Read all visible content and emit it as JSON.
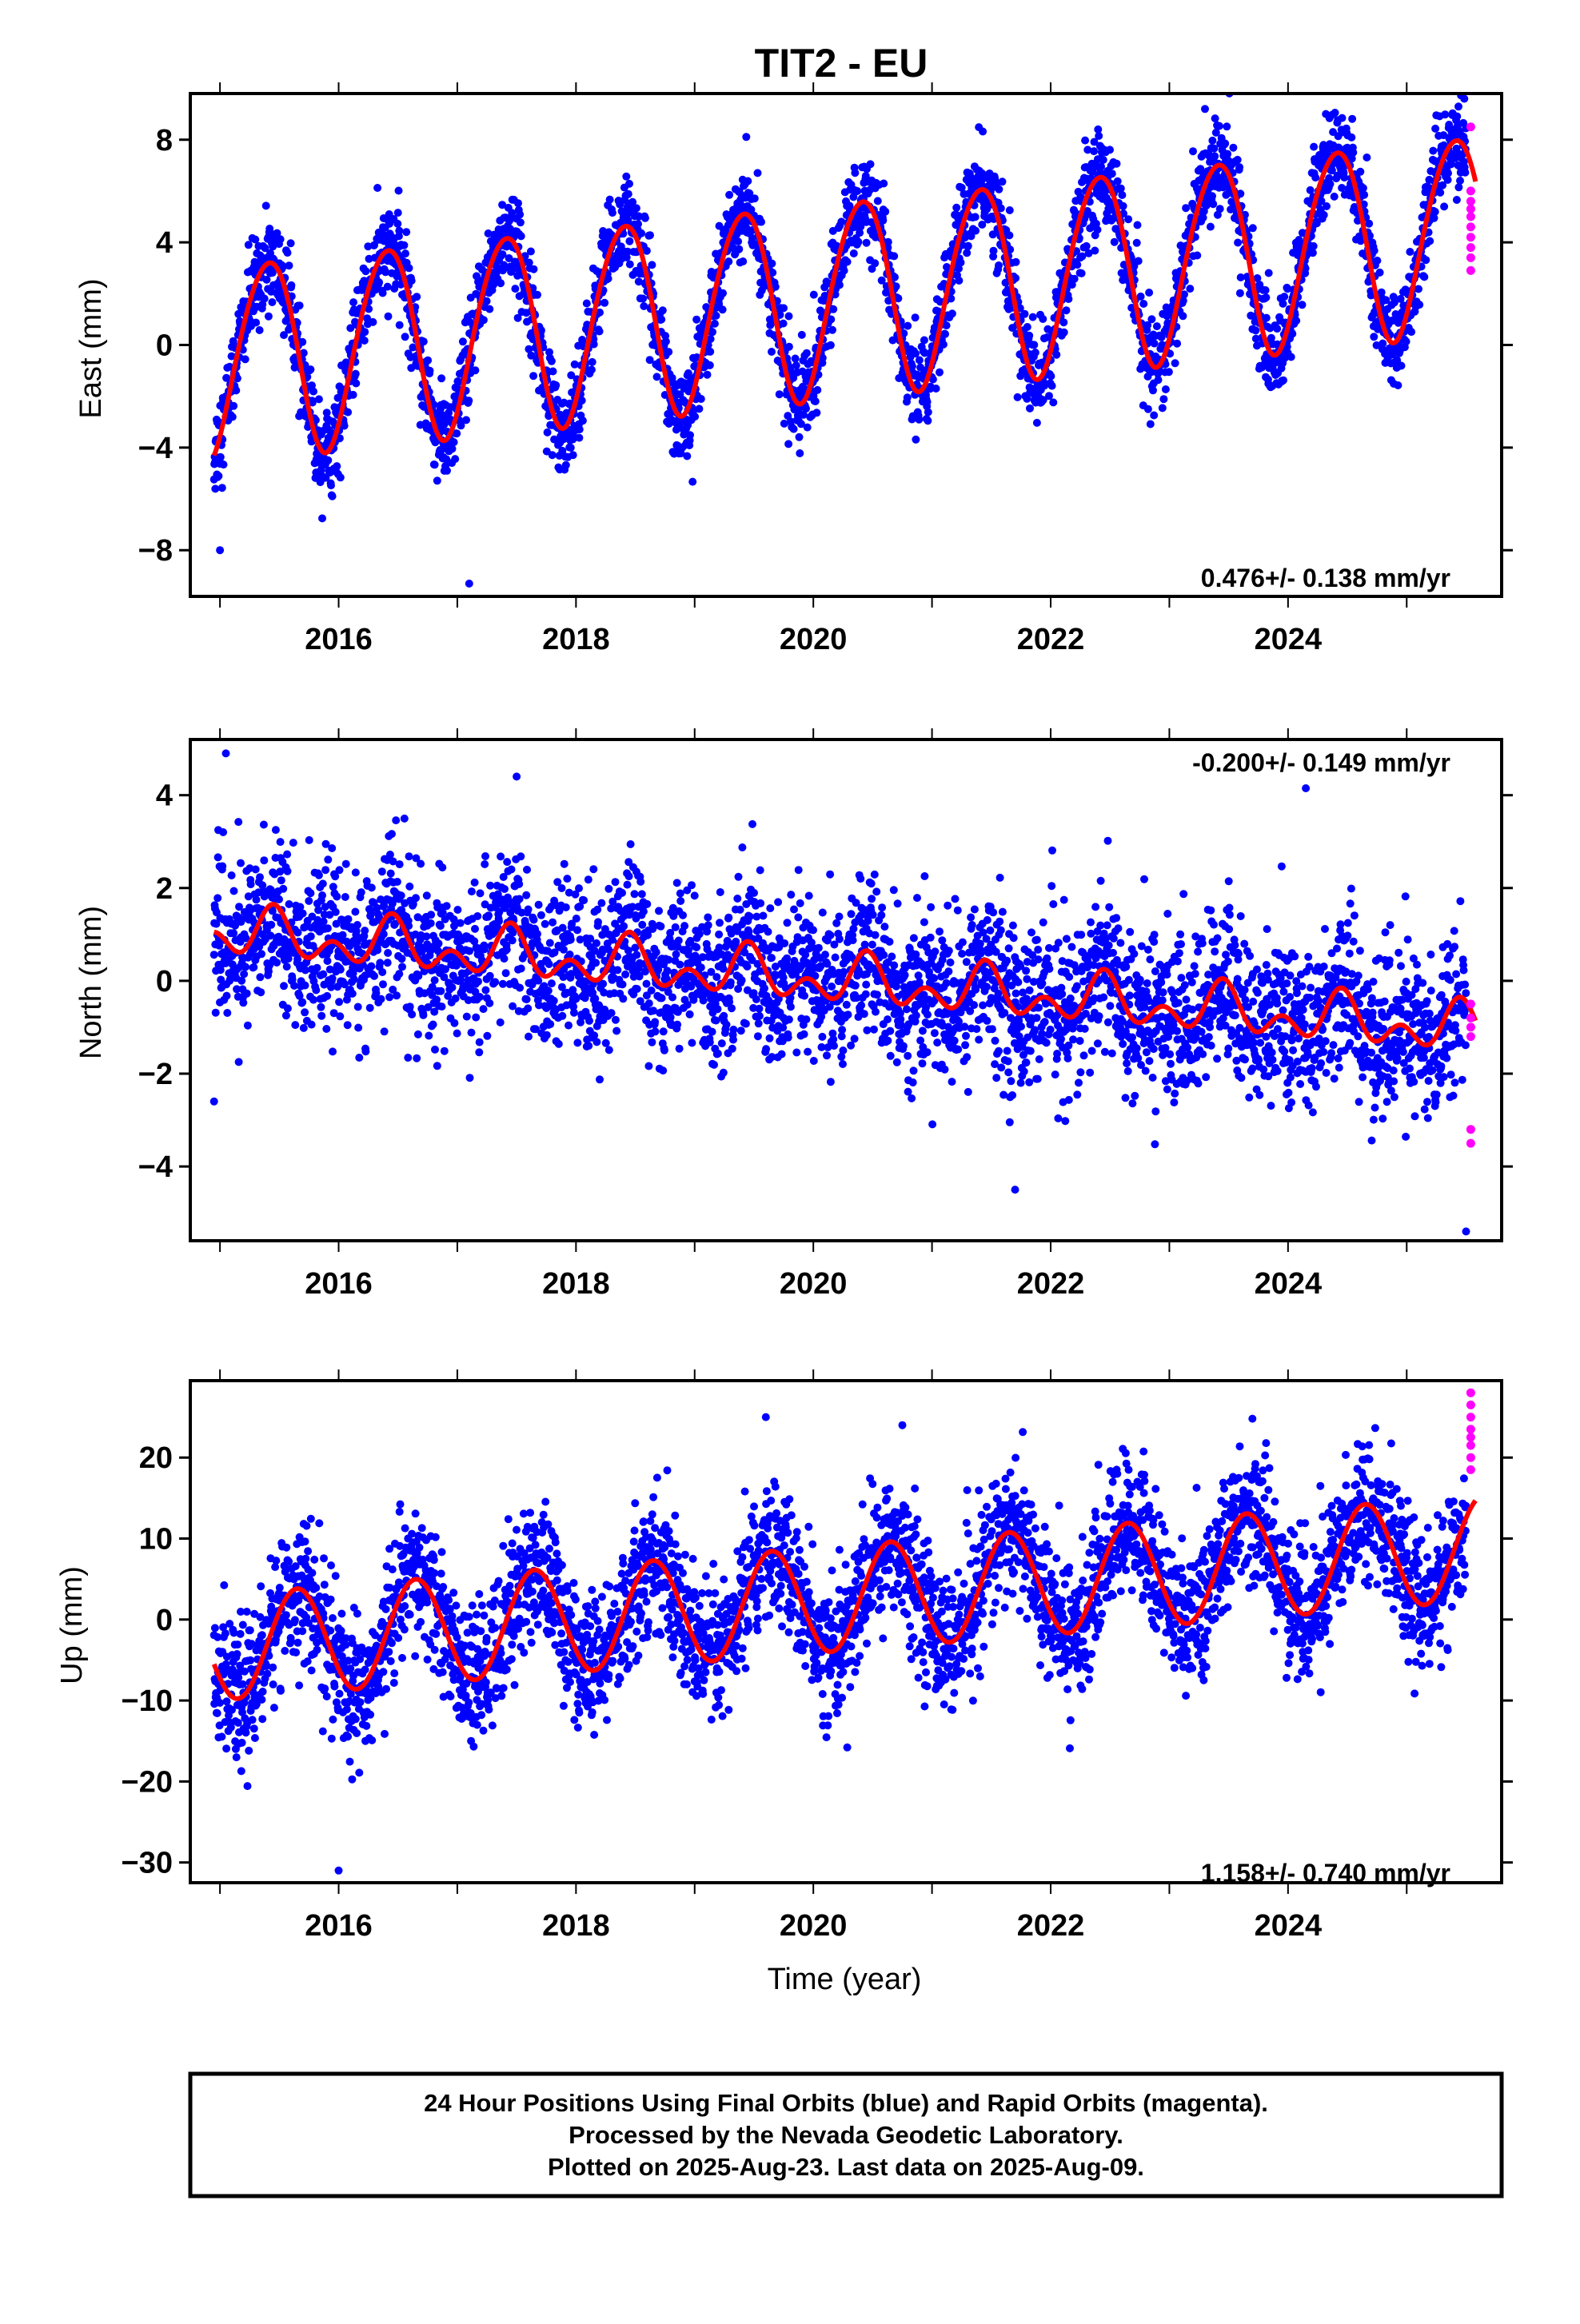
{
  "chart_data": {
    "type": "scatter",
    "title": "TIT2 - EU",
    "xlabel": "Time (year)",
    "x_ticks": [
      "2016",
      "2018",
      "2020",
      "2022",
      "2024"
    ],
    "xlim": [
      2014.75,
      2025.8
    ],
    "colors": {
      "final": "#0000ff",
      "rapid": "#ff00ff",
      "model": "#ff0000"
    },
    "panels": [
      {
        "ylabel": "East (mm)",
        "ylim": [
          -9.8,
          9.8
        ],
        "y_ticks": [
          8,
          4,
          0,
          -4,
          -8
        ],
        "rate": "0.476+/- 0.138 mm/yr",
        "model": {
          "trend": 0.476,
          "start": -0.6,
          "annual_amp": 3.8,
          "annual_peak": 0.4,
          "semiannual_amp": 0.3,
          "semiannual_peak": 0.1
        },
        "final_orbits": {
          "start": 2014.95,
          "end": 2025.5,
          "scatter": 0.9
        },
        "rapid_orbits": [
          8.5,
          6.0,
          5.6,
          5.3,
          5.0,
          4.6,
          4.2,
          3.8,
          3.4,
          2.9
        ],
        "outliers": [
          [
            2023.3,
            9.2
          ],
          [
            2017.1,
            -9.3
          ],
          [
            2015.0,
            -8.0
          ]
        ]
      },
      {
        "ylabel": "North (mm)",
        "ylim": [
          -5.6,
          5.2
        ],
        "y_ticks": [
          4,
          2,
          0,
          -2,
          -4
        ],
        "rate": "-0.200+/- 0.149 mm/yr",
        "model": {
          "trend": -0.2,
          "start": 1.05,
          "annual_amp": 0.35,
          "annual_peak": 0.45,
          "semiannual_amp": 0.35,
          "semiannual_peak": 0.45
        },
        "final_orbits": {
          "start": 2014.95,
          "end": 2025.5,
          "scatter": 0.85
        },
        "rapid_orbits": [
          -0.5,
          -0.8,
          -1.0,
          -1.2,
          -3.2,
          -3.5
        ],
        "outliers": [
          [
            2015.05,
            4.9
          ],
          [
            2024.15,
            4.15
          ],
          [
            2017.5,
            4.4
          ],
          [
            2025.5,
            -5.4
          ],
          [
            2021.7,
            -4.5
          ],
          [
            2014.95,
            -2.6
          ]
        ]
      },
      {
        "ylabel": "Up (mm)",
        "ylim": [
          -32.5,
          29.5
        ],
        "y_ticks": [
          20,
          10,
          0,
          -10,
          -20,
          -30
        ],
        "rate": "1.158+/- 0.740 mm/yr",
        "model": {
          "trend": 1.158,
          "start": -3.5,
          "annual_amp": 6.5,
          "annual_peak": 0.65,
          "semiannual_amp": 0.0,
          "semiannual_peak": 0.0
        },
        "final_orbits": {
          "start": 2014.95,
          "end": 2025.5,
          "scatter": 4.2
        },
        "rapid_orbits": [
          28.0,
          26.5,
          25.0,
          23.5,
          22.5,
          21.5,
          20.0,
          18.5
        ],
        "outliers": [
          [
            2016.0,
            -31.0
          ],
          [
            2019.6,
            25.0
          ],
          [
            2023.7,
            24.8
          ],
          [
            2020.75,
            24.0
          ]
        ]
      }
    ]
  },
  "footer": {
    "line1": "24 Hour Positions Using Final Orbits (blue) and Rapid Orbits (magenta).",
    "line2": "Processed by the Nevada Geodetic Laboratory.",
    "line3": "Plotted on 2025-Aug-23. Last data on 2025-Aug-09."
  }
}
